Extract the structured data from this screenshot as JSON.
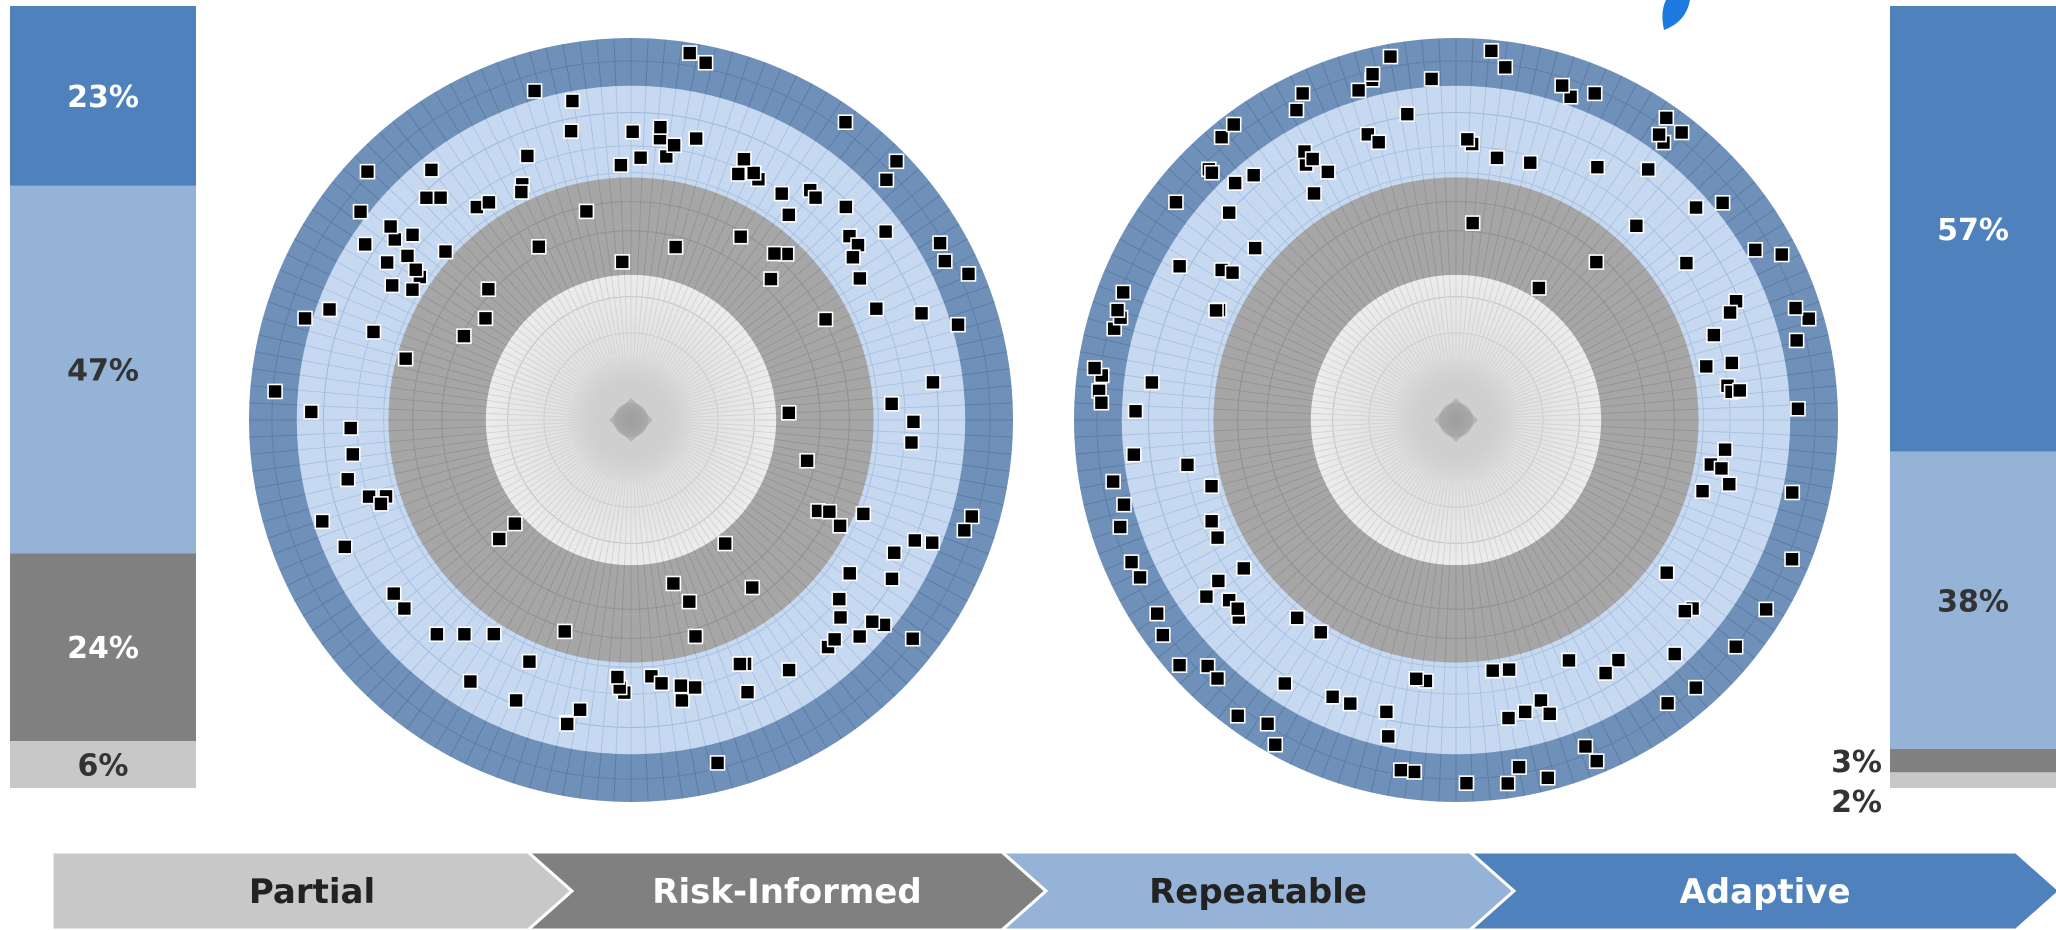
{
  "colors": {
    "partial": "#c8c8c8",
    "risk_informed": "#808080",
    "repeatable": "#95b3d7",
    "adaptive": "#4f81bd",
    "outer_ring": "#6f90b8",
    "light_blue_ring": "#c6d9f1",
    "dark_grey_ring": "#a6a6a6",
    "center": "#e4e4e4",
    "marker": "#000000"
  },
  "chart_data": [
    {
      "type": "bar",
      "stacked": true,
      "name": "left-stacked-bar",
      "segments": [
        {
          "stage": "Adaptive",
          "value": 23,
          "label": "23%"
        },
        {
          "stage": "Repeatable",
          "value": 47,
          "label": "47%"
        },
        {
          "stage": "Risk-Informed",
          "value": 24,
          "label": "24%"
        },
        {
          "stage": "Partial",
          "value": 6,
          "label": "6%"
        }
      ]
    },
    {
      "type": "scatter",
      "name": "left-radial-scatter",
      "ring_order_from_center": [
        "Partial",
        "Risk-Informed",
        "Repeatable",
        "Adaptive"
      ],
      "markers_per_ring": {
        "Risk-Informed": 26,
        "Repeatable": 96,
        "Adaptive": 18
      }
    },
    {
      "type": "scatter",
      "name": "right-radial-scatter",
      "ring_order_from_center": [
        "Partial",
        "Risk-Informed",
        "Repeatable",
        "Adaptive"
      ],
      "markers_per_ring": {
        "Risk-Informed": 3,
        "Repeatable": 74,
        "Adaptive": 63
      }
    },
    {
      "type": "bar",
      "stacked": true,
      "name": "right-stacked-bar",
      "segments": [
        {
          "stage": "Adaptive",
          "value": 57,
          "label": "57%"
        },
        {
          "stage": "Repeatable",
          "value": 38,
          "label": "38%"
        },
        {
          "stage": "Risk-Informed",
          "value": 3,
          "label": "3%"
        },
        {
          "stage": "Partial",
          "value": 2,
          "label": "2%"
        }
      ]
    }
  ],
  "stages": [
    {
      "label": "Partial"
    },
    {
      "label": "Risk-Informed"
    },
    {
      "label": "Repeatable"
    },
    {
      "label": "Adaptive"
    }
  ]
}
